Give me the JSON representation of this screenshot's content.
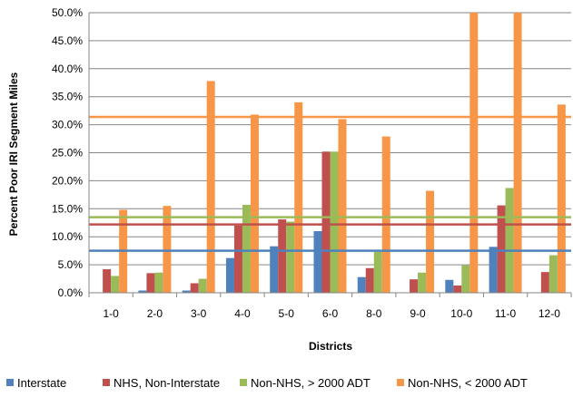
{
  "chart_data": {
    "type": "bar",
    "title": "",
    "xlabel": "Districts",
    "ylabel": "Percent Poor IRI Segment Miles",
    "ylim": [
      0,
      50
    ],
    "y_ticks": [
      "0.0%",
      "5.0%",
      "10.0%",
      "15.0%",
      "20.0%",
      "25.0%",
      "30.0%",
      "35.0%",
      "40.0%",
      "45.0%",
      "50.0%"
    ],
    "grid": true,
    "legend_position": "bottom",
    "categories": [
      "1-0",
      "2-0",
      "3-0",
      "4-0",
      "5-0",
      "6-0",
      "8-0",
      "9-0",
      "10-0",
      "11-0",
      "12-0"
    ],
    "series": [
      {
        "name": "Interstate",
        "color": "#4F81BD",
        "values": [
          0,
          0.4,
          0.4,
          6.2,
          8.3,
          11.0,
          2.8,
          0,
          2.3,
          8.2,
          0
        ],
        "average": 7.5
      },
      {
        "name": "NHS, Non-Interstate",
        "color": "#C0504D",
        "values": [
          4.2,
          3.5,
          1.7,
          12.0,
          13.1,
          25.2,
          4.4,
          2.4,
          1.3,
          15.6,
          3.7
        ],
        "average": 12.2
      },
      {
        "name": "Non-NHS, > 2000 ADT",
        "color": "#9BBB59",
        "values": [
          3.0,
          3.6,
          2.5,
          15.7,
          12.7,
          25.2,
          7.3,
          3.6,
          4.9,
          18.7,
          6.7
        ],
        "average": 13.5
      },
      {
        "name": "Non-NHS, < 2000 ADT",
        "color": "#F79646",
        "values": [
          14.8,
          15.5,
          37.8,
          31.8,
          34.0,
          31.0,
          27.9,
          18.2,
          50.0,
          50.0,
          33.6
        ],
        "average": 31.4
      }
    ]
  }
}
